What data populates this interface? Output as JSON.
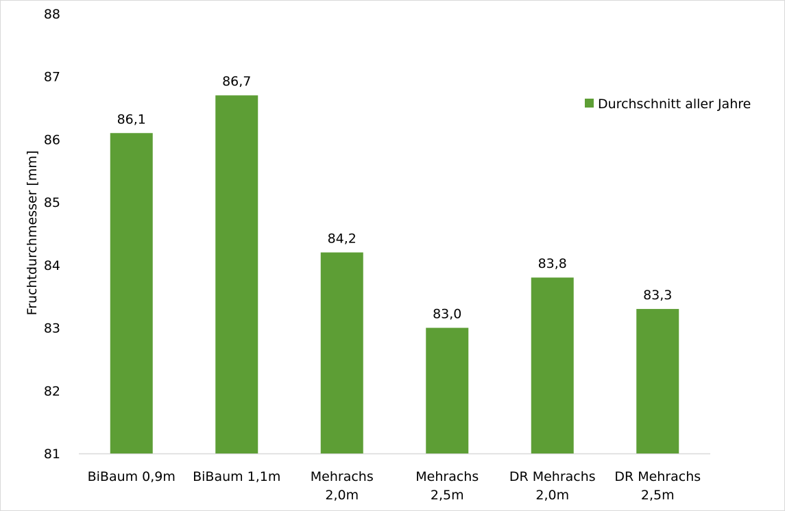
{
  "chart_data": {
    "type": "bar",
    "title": "",
    "xlabel": "",
    "ylabel": "Fruchtdurchmesser [mm]",
    "ylim": [
      81,
      88
    ],
    "yticks": [
      81,
      82,
      83,
      84,
      85,
      86,
      87,
      88
    ],
    "grid": false,
    "legend_position": "top-right",
    "categories": [
      [
        "BiBaum 0,9m"
      ],
      [
        "BiBaum 1,1m"
      ],
      [
        "Mehrachs",
        "2,0m"
      ],
      [
        "Mehrachs",
        "2,5m"
      ],
      [
        "DR Mehrachs",
        "2,0m"
      ],
      [
        "DR Mehrachs",
        "2,5m"
      ]
    ],
    "series": [
      {
        "name": "Durchschnitt aller Jahre",
        "color": "#5d9e35",
        "values": [
          86.1,
          86.7,
          84.2,
          83.0,
          83.8,
          83.3
        ],
        "labels": [
          "86,1",
          "86,7",
          "84,2",
          "83,0",
          "83,8",
          "83,3"
        ]
      }
    ]
  }
}
